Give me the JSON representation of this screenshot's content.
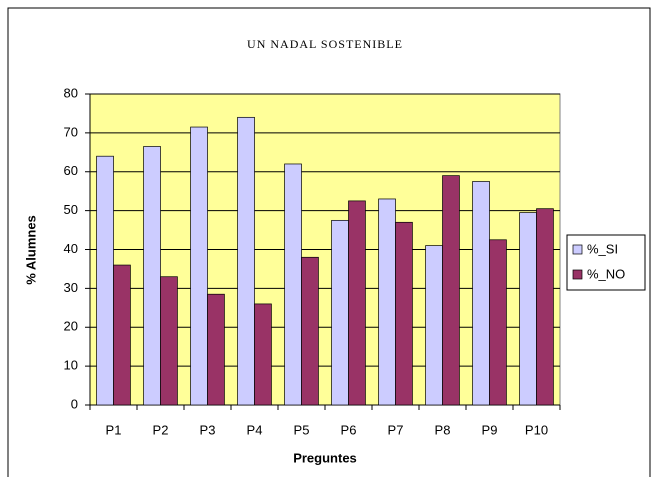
{
  "chart_data": {
    "type": "bar",
    "title": "UN NADAL SOSTENIBLE",
    "x_label": "Preguntes",
    "y_label": "% Alumnes",
    "categories": [
      "P1",
      "P2",
      "P3",
      "P4",
      "P5",
      "P6",
      "P7",
      "P8",
      "P9",
      "P10"
    ],
    "series": [
      {
        "name": "%_SI",
        "color": "#ccccff",
        "values": [
          64,
          66.5,
          71.5,
          74,
          62,
          47.5,
          53,
          41,
          57.5,
          49.5
        ]
      },
      {
        "name": "%_NO",
        "color": "#993366",
        "values": [
          36,
          33,
          28.5,
          26,
          38,
          52.5,
          47,
          59,
          42.5,
          50.5
        ]
      }
    ],
    "ylim": [
      0,
      80
    ],
    "yticks": [
      0,
      10,
      20,
      30,
      40,
      50,
      60,
      70,
      80
    ],
    "grid": true,
    "legend": "right",
    "plot_background": "#ffff99"
  }
}
